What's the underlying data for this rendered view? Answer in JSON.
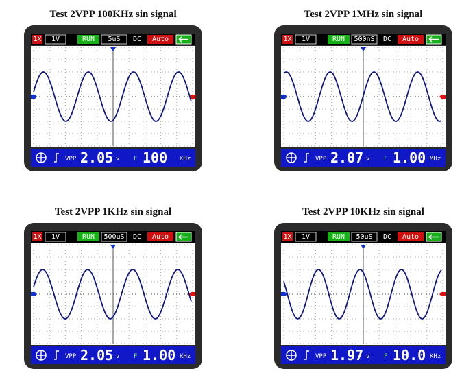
{
  "panels": [
    {
      "title": "Test 2VPP 100KHz sin signal",
      "probe": "1X",
      "volts": "1V",
      "state": "RUN",
      "timebase": "5uS",
      "coupling": "DC",
      "trigger": "Auto",
      "vpp_label": "VPP",
      "vpp": "2.05",
      "vpp_unit": "v",
      "freq_label": "F",
      "freq": "100",
      "freq_unit": "KHz"
    },
    {
      "title": "Test 2VPP 1MHz sin signal",
      "probe": "1X",
      "volts": "1V",
      "state": "RUN",
      "timebase": "500nS",
      "coupling": "DC",
      "trigger": "Auto",
      "vpp_label": "VPP",
      "vpp": "2.07",
      "vpp_unit": "v",
      "freq_label": "F",
      "freq": "1.00",
      "freq_unit": "MHz"
    },
    {
      "title": "Test 2VPP 1KHz sin signal",
      "probe": "1X",
      "volts": "1V",
      "state": "RUN",
      "timebase": "500uS",
      "coupling": "DC",
      "trigger": "Auto",
      "vpp_label": "VPP",
      "vpp": "2.05",
      "vpp_unit": "v",
      "freq_label": "F",
      "freq": "1.00",
      "freq_unit": "KHz"
    },
    {
      "title": "Test 2VPP 10KHz sin signal",
      "probe": "1X",
      "volts": "1V",
      "state": "RUN",
      "timebase": "50uS",
      "coupling": "DC",
      "trigger": "Auto",
      "vpp_label": "VPP",
      "vpp": "1.97",
      "vpp_unit": "v",
      "freq_label": "F",
      "freq": "10.0",
      "freq_unit": "KHz"
    }
  ]
}
